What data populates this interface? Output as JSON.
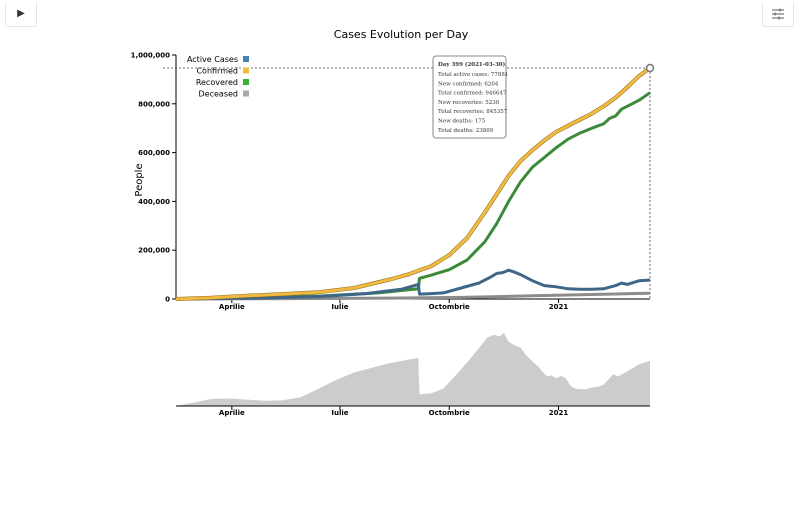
{
  "controls": {
    "play_icon": "play-icon",
    "play_glyph": "▶",
    "settings_icon": "sliders-icon"
  },
  "chart_data": [
    {
      "type": "line",
      "title": "Cases Evolution per Day",
      "ylabel": "People",
      "xlabel": "",
      "x_ticks": [
        "Aprilie",
        "Iulie",
        "Octombrie",
        "2021"
      ],
      "y_ticks": [
        "0",
        "200,000",
        "400,000",
        "600,000",
        "800,000",
        "1,000,000"
      ],
      "ylim": [
        0,
        1000000
      ],
      "x_range_days": [
        0,
        399
      ],
      "x_unit": "Day",
      "grid": false,
      "legend_position": "top-left",
      "legend": [
        {
          "name": "Active Cases",
          "color": "#4682b4"
        },
        {
          "name": "Confirmed",
          "color": "#f0b940"
        },
        {
          "name": "Recovered",
          "color": "#33b233"
        },
        {
          "name": "Deceased",
          "color": "#a8a8a8"
        }
      ],
      "series": [
        {
          "name": "Confirmed",
          "color": "#f0b940",
          "x": [
            0,
            30,
            60,
            90,
            120,
            150,
            180,
            195,
            205,
            215,
            230,
            245,
            260,
            270,
            280,
            290,
            300,
            310,
            320,
            330,
            340,
            350,
            360,
            370,
            380,
            390,
            399
          ],
          "y": [
            0,
            5000,
            13000,
            20000,
            28000,
            45000,
            80000,
            100000,
            118000,
            135000,
            180000,
            250000,
            355000,
            430000,
            505000,
            565000,
            610000,
            650000,
            685000,
            710000,
            735000,
            760000,
            790000,
            825000,
            868000,
            915000,
            946647
          ]
        },
        {
          "name": "Recovered",
          "color": "#33b233",
          "x": [
            0,
            60,
            120,
            170,
            204,
            205,
            215,
            230,
            245,
            260,
            270,
            280,
            290,
            300,
            310,
            320,
            330,
            340,
            350,
            360,
            365,
            370,
            375,
            380,
            390,
            399
          ],
          "y": [
            0,
            5000,
            12000,
            25000,
            42000,
            85000,
            98000,
            120000,
            160000,
            235000,
            310000,
            400000,
            480000,
            540000,
            580000,
            620000,
            655000,
            680000,
            700000,
            718000,
            740000,
            750000,
            778000,
            790000,
            815000,
            845357
          ]
        },
        {
          "name": "Active Cases",
          "color": "#4682b4",
          "x": [
            0,
            60,
            120,
            160,
            190,
            204,
            205,
            215,
            225,
            240,
            255,
            265,
            270,
            275,
            280,
            285,
            290,
            300,
            310,
            320,
            330,
            340,
            350,
            360,
            370,
            375,
            380,
            390,
            399
          ],
          "y": [
            0,
            3000,
            10000,
            22000,
            40000,
            60000,
            20000,
            22000,
            25000,
            45000,
            65000,
            90000,
            105000,
            108000,
            118000,
            110000,
            100000,
            75000,
            55000,
            50000,
            42000,
            40000,
            40000,
            42000,
            55000,
            65000,
            60000,
            75000,
            77881
          ]
        },
        {
          "name": "Deceased",
          "color": "#a8a8a8",
          "x": [
            0,
            60,
            120,
            180,
            240,
            300,
            360,
            399
          ],
          "y": [
            0,
            800,
            2000,
            3500,
            6500,
            13000,
            19500,
            23809
          ]
        }
      ],
      "tooltip": {
        "header": "Day 399 (2021-03-30)",
        "lines": [
          "Total active cases: 77881",
          "New confirmed: 6204",
          "Total confirmed: 946647",
          "New recoveries: 5230",
          "Total recoveries: 845357",
          "New deaths: 175",
          "Total deaths: 23809"
        ]
      },
      "focus": {
        "x": 399,
        "y": 946647
      }
    },
    {
      "type": "area",
      "title": "",
      "x_ticks": [
        "Aprilie",
        "Iulie",
        "Octombrie",
        "2021"
      ],
      "x_range_days": [
        0,
        399
      ],
      "color": "#cccccc",
      "series": [
        {
          "x": [
            0,
            15,
            30,
            45,
            60,
            75,
            90,
            105,
            120,
            135,
            150,
            165,
            180,
            195,
            204,
            205,
            215,
            225,
            235,
            245,
            255,
            262,
            268,
            272,
            276,
            280,
            285,
            290,
            295,
            300,
            305,
            310,
            313,
            316,
            320,
            324,
            328,
            332,
            336,
            340,
            345,
            350,
            355,
            360,
            365,
            368,
            372,
            380,
            390,
            399
          ],
          "y": [
            0,
            6,
            12,
            13,
            11,
            9,
            10,
            15,
            30,
            45,
            58,
            66,
            74,
            80,
            83,
            20,
            22,
            30,
            52,
            75,
            100,
            118,
            123,
            120,
            126,
            111,
            105,
            101,
            87,
            77,
            68,
            56,
            51,
            53,
            48,
            52,
            48,
            35,
            30,
            29,
            29,
            32,
            33,
            37,
            48,
            55,
            51,
            60,
            72,
            78
          ]
        }
      ]
    }
  ]
}
